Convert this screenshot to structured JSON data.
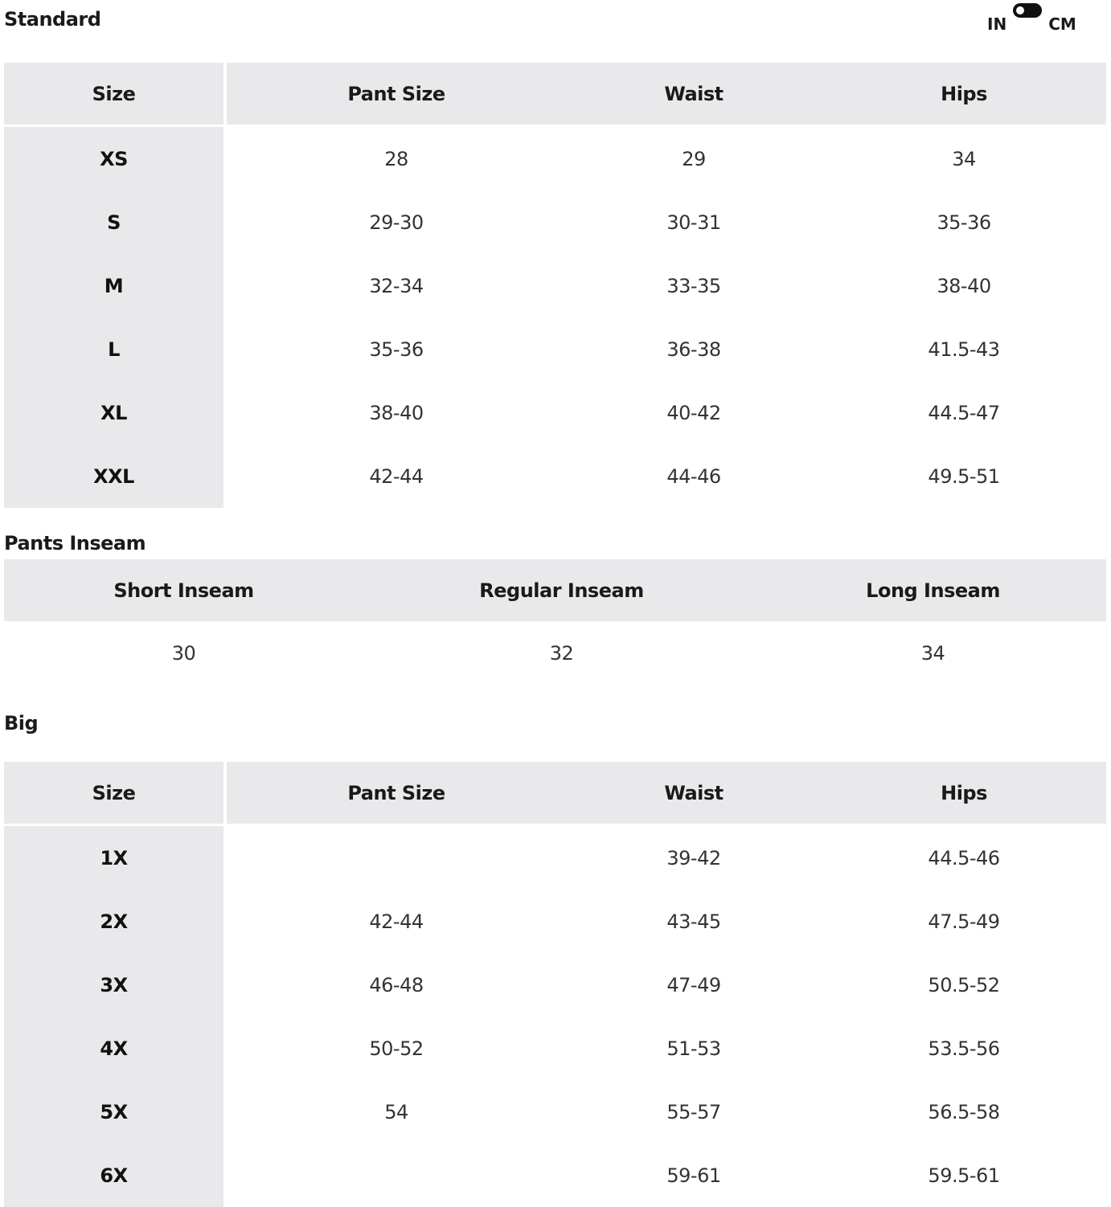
{
  "standard": {
    "title": "Standard",
    "unit_toggle": {
      "left": "IN",
      "right": "CM",
      "selected": "IN"
    },
    "headers": [
      "Size",
      "Pant Size",
      "Waist",
      "Hips"
    ],
    "rows": [
      [
        "XS",
        "28",
        "29",
        "34"
      ],
      [
        "S",
        "29-30",
        "30-31",
        "35-36"
      ],
      [
        "M",
        "32-34",
        "33-35",
        "38-40"
      ],
      [
        "L",
        "35-36",
        "36-38",
        "41.5-43"
      ],
      [
        "XL",
        "38-40",
        "40-42",
        "44.5-47"
      ],
      [
        "XXL",
        "42-44",
        "44-46",
        "49.5-51"
      ]
    ]
  },
  "inseam": {
    "title": "Pants Inseam",
    "headers": [
      "Short Inseam",
      "Regular Inseam",
      "Long Inseam"
    ],
    "values": [
      "30",
      "32",
      "34"
    ]
  },
  "big": {
    "title": "Big",
    "headers": [
      "Size",
      "Pant Size",
      "Waist",
      "Hips"
    ],
    "rows": [
      [
        "1X",
        "",
        "39-42",
        "44.5-46"
      ],
      [
        "2X",
        "42-44",
        "43-45",
        "47.5-49"
      ],
      [
        "3X",
        "46-48",
        "47-49",
        "50.5-52"
      ],
      [
        "4X",
        "50-52",
        "51-53",
        "53.5-56"
      ],
      [
        "5X",
        "54",
        "55-57",
        "56.5-58"
      ],
      [
        "6X",
        "",
        "59-61",
        "59.5-61"
      ]
    ]
  }
}
